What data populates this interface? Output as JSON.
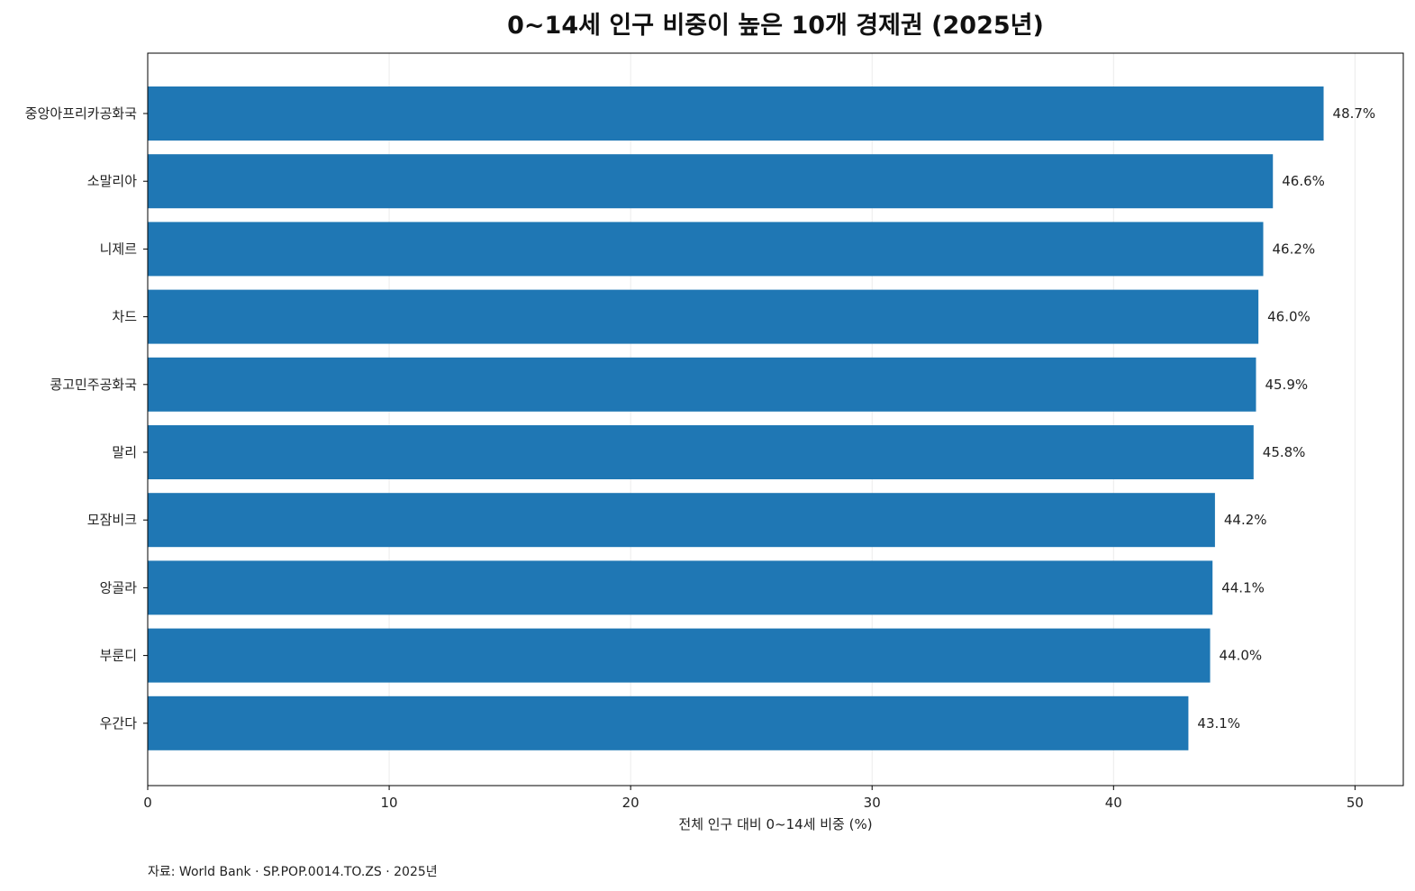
{
  "chart_data": {
    "type": "bar",
    "orientation": "horizontal",
    "title": "0~14세 인구 비중이 높은 10개 경제권 (2025년)",
    "xlabel": "전체 인구 대비 0~14세 비중 (%)",
    "ylabel": "",
    "categories": [
      "중앙아프리카공화국",
      "소말리아",
      "니제르",
      "차드",
      "콩고민주공화국",
      "말리",
      "모잠비크",
      "앙골라",
      "부룬디",
      "우간다"
    ],
    "values": [
      48.7,
      46.6,
      46.2,
      46.0,
      45.9,
      45.8,
      44.2,
      44.1,
      44.0,
      43.1
    ],
    "value_labels": [
      "48.7%",
      "46.6%",
      "46.2%",
      "46.0%",
      "45.9%",
      "45.8%",
      "44.2%",
      "44.1%",
      "44.0%",
      "43.1%"
    ],
    "xlim": [
      0,
      52
    ],
    "xticks": [
      0,
      10,
      20,
      30,
      40,
      50
    ],
    "xtick_labels": [
      "0",
      "10",
      "20",
      "30",
      "40",
      "50"
    ],
    "grid": "vertical",
    "legend": "none",
    "bar_color": "#1f77b4",
    "grid_color": "#ebebeb",
    "axis_color": "#000000",
    "source": "자료: World Bank · SP.POP.0014.TO.ZS · 2025년"
  }
}
